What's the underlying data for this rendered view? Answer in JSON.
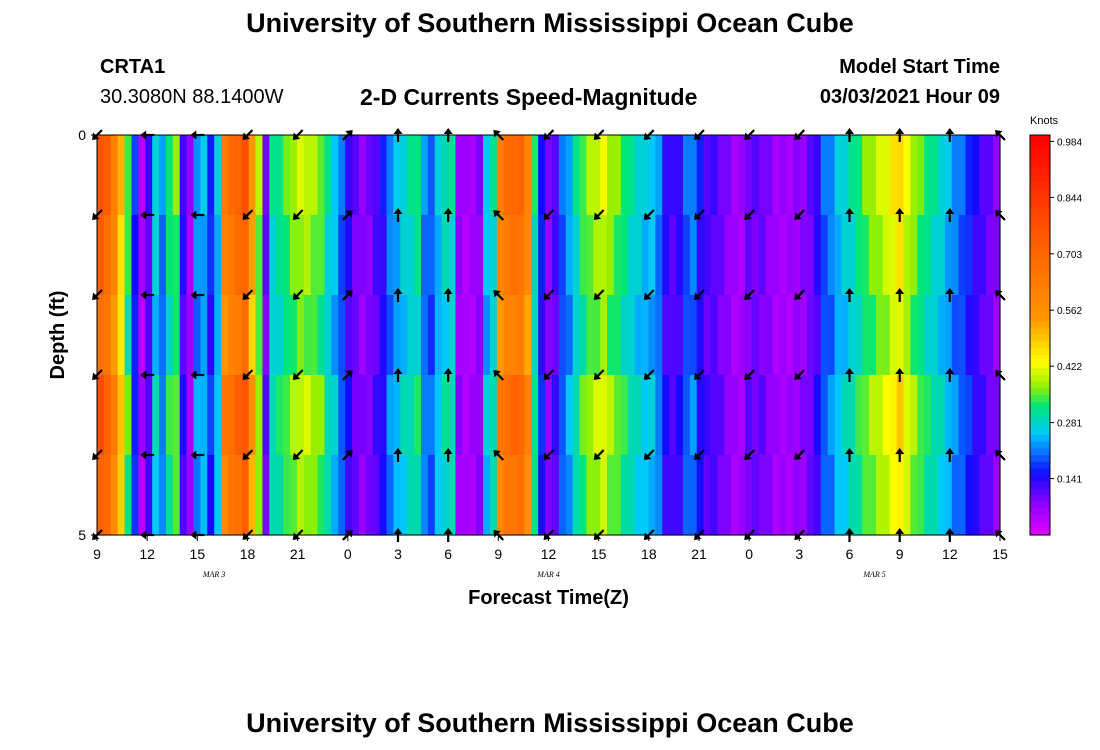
{
  "header": {
    "title_top": "University of Southern Mississippi Ocean Cube",
    "station_id": "CRTA1",
    "station_coords": "30.3080N 88.1400W",
    "plot_title": "2-D Currents Speed-Magnitude",
    "model_start_label": "Model Start Time",
    "model_start_value": "03/03/2021 Hour 09",
    "title_bottom": "University of Southern Mississippi Ocean Cube"
  },
  "chart_data": {
    "type": "heatmap",
    "title": "2-D Currents Speed-Magnitude",
    "xlabel": "Forecast Time(Z)",
    "ylabel": "Depth (ft)",
    "x_ticks": [
      "9",
      "12",
      "15",
      "18",
      "21",
      "0",
      "3",
      "6",
      "9",
      "12",
      "15",
      "18",
      "21",
      "0",
      "3",
      "6",
      "9",
      "12",
      "15"
    ],
    "x_hours": [
      0,
      3,
      6,
      9,
      12,
      15,
      18,
      21,
      24,
      27,
      30,
      33,
      36,
      39,
      42,
      45,
      48,
      51,
      54
    ],
    "date_labels": [
      {
        "label": "MAR  3",
        "hour": 7
      },
      {
        "label": "MAR  4",
        "hour": 27
      },
      {
        "label": "MAR  5",
        "hour": 46.5
      }
    ],
    "y_ticks": [
      "0",
      "5"
    ],
    "ylim": [
      0,
      5
    ],
    "colorbar": {
      "unit": "Knots",
      "range": [
        0.0,
        1.0
      ],
      "tick_values": [
        "0.984",
        "0.844",
        "0.703",
        "0.562",
        "0.422",
        "0.281",
        "0.141"
      ]
    },
    "speed_by_hour_knots": [
      0.77,
      0.72,
      0.62,
      0.5,
      0.35,
      0.17,
      0.05,
      0.12,
      0.28,
      0.22,
      0.33,
      0.36,
      0.13,
      0.06,
      0.23,
      0.25,
      0.17,
      0.26,
      0.64,
      0.68,
      0.72,
      0.76,
      0.55,
      0.38,
      0.1,
      0.3,
      0.32,
      0.35,
      0.38,
      0.4,
      0.4,
      0.38,
      0.36,
      0.3,
      0.26,
      0.2,
      0.14,
      0.1,
      0.08,
      0.09,
      0.12,
      0.15,
      0.22,
      0.25,
      0.28,
      0.3,
      0.32,
      0.22,
      0.2,
      0.26,
      0.3,
      0.3,
      0.07,
      0.05,
      0.06,
      0.08,
      0.26,
      0.3,
      0.62,
      0.68,
      0.7,
      0.7,
      0.6,
      0.32,
      0.16,
      0.08,
      0.12,
      0.2,
      0.24,
      0.3,
      0.35,
      0.38,
      0.4,
      0.42,
      0.38,
      0.36,
      0.33,
      0.3,
      0.28,
      0.26,
      0.26,
      0.22,
      0.14,
      0.12,
      0.14,
      0.2,
      0.22,
      0.15,
      0.12,
      0.12,
      0.1,
      0.08,
      0.06,
      0.06,
      0.1,
      0.1,
      0.1,
      0.08,
      0.06,
      0.06,
      0.06,
      0.07,
      0.08,
      0.1,
      0.14,
      0.2,
      0.22,
      0.26,
      0.28,
      0.3,
      0.33,
      0.36,
      0.38,
      0.4,
      0.42,
      0.45,
      0.48,
      0.42,
      0.38,
      0.35,
      0.32,
      0.3,
      0.28,
      0.25,
      0.22,
      0.2,
      0.17,
      0.14,
      0.12,
      0.1,
      0.08
    ],
    "depth_rows_ft": [
      0,
      1,
      2,
      3,
      4,
      5
    ],
    "vector_rows_depth_ft": [
      0,
      1,
      2,
      3,
      4,
      5
    ],
    "vector_hours": [
      0,
      3,
      6,
      9,
      12,
      15,
      18,
      21,
      24,
      27,
      30,
      33,
      36,
      39,
      42,
      45,
      48,
      51,
      54
    ],
    "vector_direction_deg": [
      135,
      180,
      180,
      135,
      135,
      315,
      270,
      270,
      225,
      135,
      135,
      135,
      135,
      135,
      135,
      270,
      270,
      270,
      225
    ]
  }
}
